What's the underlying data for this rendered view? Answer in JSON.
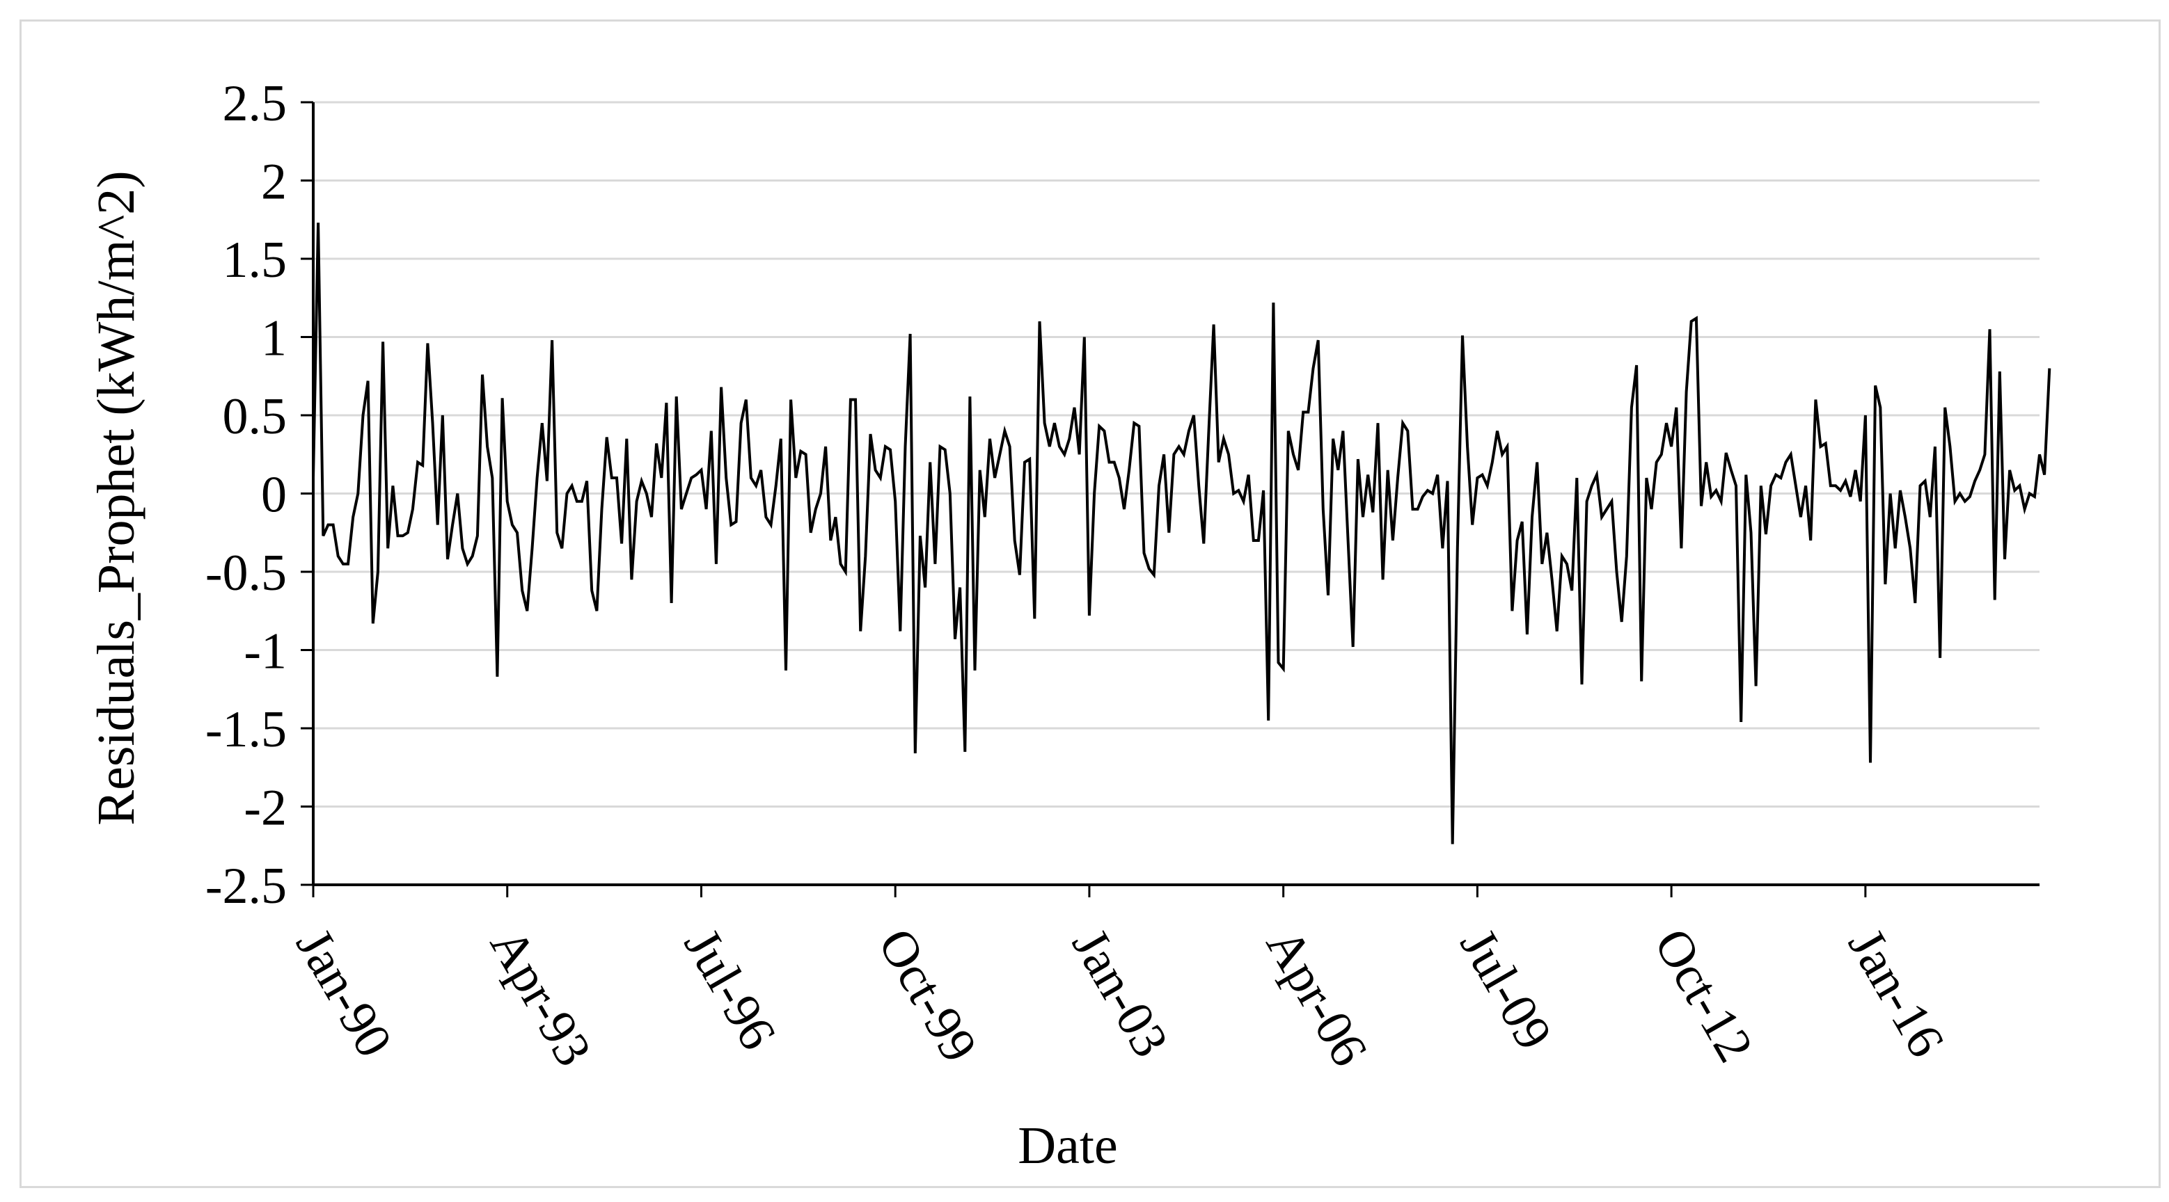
{
  "chart_data": {
    "type": "line",
    "title": "",
    "xlabel": "Date",
    "ylabel": "Residuals_Prophet (kWh/m^2)",
    "ylim": [
      -2.5,
      2.5
    ],
    "yticks": [
      2.5,
      2,
      1.5,
      1,
      0.5,
      0,
      -0.5,
      -1,
      -1.5,
      -2,
      -2.5
    ],
    "ytick_labels": [
      "2.5",
      "2",
      "1.5",
      "1",
      "0.5",
      "0",
      "-0.5",
      "-1",
      "-1.5",
      "-2",
      "-2.5"
    ],
    "xlim": [
      "1990-01",
      "2018-12"
    ],
    "xticks": [
      "1990-01",
      "1993-04",
      "1996-07",
      "1999-10",
      "2003-01",
      "2006-04",
      "2009-07",
      "2012-10",
      "2016-01"
    ],
    "xtick_labels": [
      "Jan-90",
      "Apr-93",
      "Jul-96",
      "Oct-99",
      "Jan-03",
      "Apr-06",
      "Jul-09",
      "Oct-12",
      "Jan-16"
    ],
    "grid": true,
    "legend": "none",
    "line_color": "#000000",
    "grid_color": "#d9d9d9",
    "series": [
      {
        "start": "1990-01",
        "frequency": "monthly",
        "values": [
          0.1,
          1.73,
          -0.27,
          -0.2,
          -0.2,
          -0.4,
          -0.45,
          -0.45,
          -0.15,
          0,
          0.5,
          0.72,
          -0.83,
          -0.5,
          0.97,
          -0.35,
          0.05,
          -0.27,
          -0.27,
          -0.25,
          -0.1,
          0.2,
          0.18,
          0.96,
          0.45,
          -0.2,
          0.5,
          -0.42,
          -0.2,
          0,
          -0.35,
          -0.45,
          -0.4,
          -0.27,
          0.76,
          0.3,
          0.1,
          -1.17,
          0.61,
          -0.05,
          -0.2,
          -0.25,
          -0.62,
          -0.75,
          -0.35,
          0.1,
          0.45,
          0.08,
          0.98,
          -0.25,
          -0.35,
          0,
          0.05,
          -0.05,
          -0.05,
          0.08,
          -0.62,
          -0.75,
          -0.1,
          0.36,
          0.1,
          0.1,
          -0.32,
          0.35,
          -0.55,
          -0.05,
          0.08,
          0,
          -0.15,
          0.32,
          0.1,
          0.58,
          -0.7,
          0.62,
          -0.1,
          0,
          0.1,
          0.12,
          0.15,
          -0.1,
          0.4,
          -0.45,
          0.68,
          0.1,
          -0.2,
          -0.18,
          0.45,
          0.6,
          0.1,
          0.05,
          0.15,
          -0.15,
          -0.2,
          0.05,
          0.35,
          -1.13,
          0.6,
          0.1,
          0.27,
          0.25,
          -0.25,
          -0.1,
          0,
          0.3,
          -0.3,
          -0.15,
          -0.45,
          -0.5,
          0.6,
          0.6,
          -0.88,
          -0.4,
          0.38,
          0.15,
          0.1,
          0.3,
          0.28,
          -0.05,
          -0.88,
          0.3,
          1.02,
          -1.66,
          -0.27,
          -0.6,
          0.2,
          -0.45,
          0.3,
          0.28,
          0,
          -0.93,
          -0.6,
          -1.65,
          0.62,
          -1.13,
          0.15,
          -0.15,
          0.35,
          0.1,
          0.25,
          0.4,
          0.3,
          -0.3,
          -0.52,
          0.2,
          0.22,
          -0.8,
          1.1,
          0.45,
          0.3,
          0.45,
          0.3,
          0.25,
          0.35,
          0.55,
          0.25,
          1,
          -0.78,
          0,
          0.43,
          0.4,
          0.2,
          0.2,
          0.1,
          -0.1,
          0.15,
          0.45,
          0.43,
          -0.38,
          -0.48,
          -0.52,
          0.05,
          0.25,
          -0.25,
          0.25,
          0.3,
          0.25,
          0.4,
          0.5,
          0.05,
          -0.32,
          0.4,
          1.08,
          0.2,
          0.35,
          0.25,
          0,
          0.02,
          -0.05,
          0.12,
          -0.3,
          -0.3,
          0.02,
          -1.45,
          1.22,
          -1.08,
          -1.12,
          0.4,
          0.25,
          0.15,
          0.52,
          0.52,
          0.8,
          0.98,
          -0.1,
          -0.65,
          0.35,
          0.15,
          0.4,
          -0.3,
          -0.98,
          0.22,
          -0.15,
          0.12,
          -0.12,
          0.45,
          -0.55,
          0.15,
          -0.3,
          0.1,
          0.45,
          0.4,
          -0.1,
          -0.1,
          -0.02,
          0.02,
          0,
          0.12,
          -0.35,
          0.08,
          -2.24,
          -0.35,
          1.01,
          0.3,
          -0.2,
          0.1,
          0.12,
          0.05,
          0.2,
          0.4,
          0.25,
          0.3,
          -0.75,
          -0.3,
          -0.18,
          -0.9,
          -0.15,
          0.2,
          -0.45,
          -0.25,
          -0.55,
          -0.88,
          -0.4,
          -0.45,
          -0.62,
          0.1,
          -1.22,
          -0.05,
          0.05,
          0.12,
          -0.15,
          -0.1,
          -0.05,
          -0.5,
          -0.82,
          -0.4,
          0.55,
          0.82,
          -1.2,
          0.1,
          -0.1,
          0.2,
          0.25,
          0.45,
          0.3,
          0.55,
          -0.35,
          0.65,
          1.1,
          1.12,
          -0.08,
          0.2,
          -0.02,
          0.02,
          -0.05,
          0.26,
          0.15,
          0.05,
          -1.46,
          0.12,
          -0.25,
          -1.23,
          0.05,
          -0.26,
          0.05,
          0.12,
          0.1,
          0.2,
          0.25,
          0.05,
          -0.15,
          0.05,
          -0.3,
          0.6,
          0.3,
          0.32,
          0.05,
          0.05,
          0.02,
          0.08,
          -0.02,
          0.15,
          -0.05,
          0.5,
          -1.72,
          0.69,
          0.55,
          -0.58,
          0,
          -0.35,
          0.02,
          -0.15,
          -0.35,
          -0.7,
          0.05,
          0.08,
          -0.15,
          0.3,
          -1.05,
          0.55,
          0.3,
          -0.05,
          0,
          -0.05,
          -0.02,
          0.08,
          0.15,
          0.25,
          1.05,
          -0.68,
          0.78,
          -0.42,
          0.15,
          0.02,
          0.05,
          -0.1,
          0,
          -0.02,
          0.25,
          0.12,
          0.8
        ]
      }
    ]
  }
}
